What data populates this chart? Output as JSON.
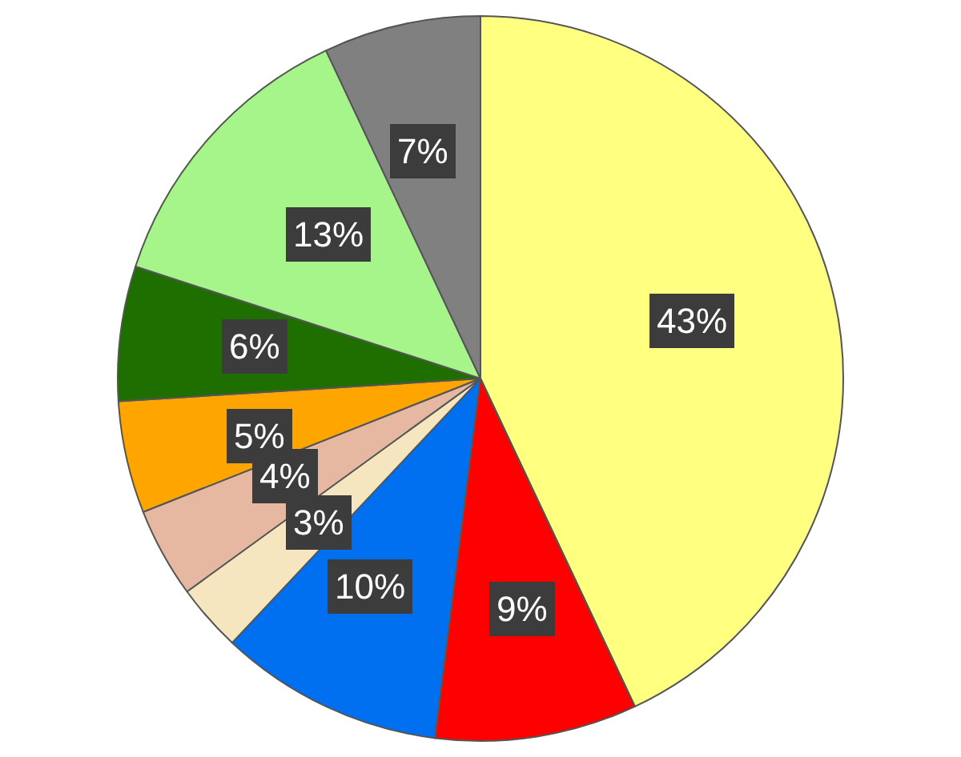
{
  "chart_data": {
    "type": "pie",
    "categories": [
      null,
      null,
      null,
      null,
      null,
      null,
      null,
      null,
      null
    ],
    "values": [
      43,
      9,
      10,
      3,
      4,
      5,
      6,
      13,
      7
    ],
    "colors": [
      "#ffff80",
      "#ff0000",
      "#0070f0",
      "#f5e6c0",
      "#e6b8a2",
      "#ffa500",
      "#1e6e00",
      "#a6f58a",
      "#808080"
    ],
    "value_labels": [
      "43%",
      "9%",
      "10%",
      "3%",
      "4%",
      "5%",
      "6%",
      "13%",
      "7%"
    ],
    "legend": false
  }
}
